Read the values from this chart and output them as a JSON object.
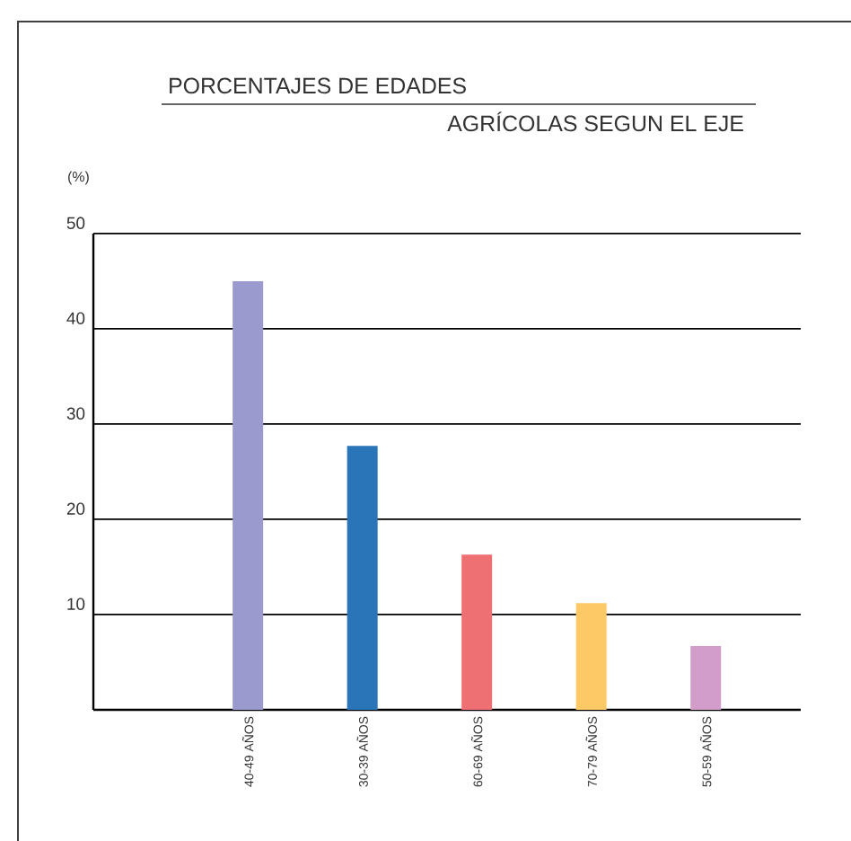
{
  "chart_data": {
    "type": "bar",
    "title": "PORCENTAJES DE EDADES",
    "subtitle": "AGRÍCOLAS SEGUN EL EJE",
    "annotations": [
      "(%)"
    ],
    "categories": [
      "40-49 AÑOS",
      "30-39 AÑOS",
      "60-69 AÑOS",
      "70-79 AÑOS",
      "50-59 AÑOS"
    ],
    "values": [
      45.0,
      27.7,
      16.3,
      11.2,
      6.7
    ],
    "colors": [
      "#9b9ace",
      "#2a74b8",
      "#ef7072",
      "#fdc967",
      "#d29dc9"
    ],
    "ylim": [
      0,
      50
    ],
    "yticks": [
      10,
      20,
      30,
      40,
      50
    ],
    "grid": "y"
  }
}
